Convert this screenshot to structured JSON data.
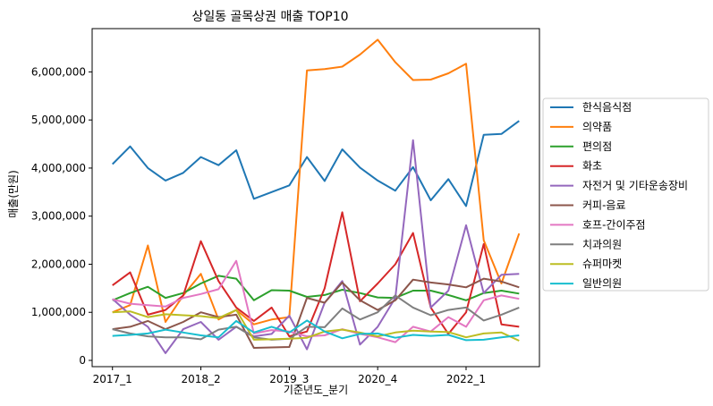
{
  "chart_data": {
    "type": "line",
    "title": "상일동 골목상권 매출 TOP10",
    "xlabel": "기준년도_분기",
    "ylabel": "매출(만원)",
    "xtick_labels": [
      "2017_1",
      "2018_2",
      "2019_3",
      "2020_4",
      "2022_1"
    ],
    "xtick_index": [
      0,
      5,
      10,
      15,
      20
    ],
    "yticks": [
      0,
      1000000,
      2000000,
      3000000,
      4000000,
      5000000,
      6000000
    ],
    "ytick_labels": [
      "0",
      "1,000,000",
      "2,000,000",
      "3,000,000",
      "4,000,000",
      "5,000,000",
      "6,000,000"
    ],
    "ylim": [
      -130000,
      6900000
    ],
    "x_range": [
      -1.15,
      24.15
    ],
    "grid": false,
    "legend_position": "right",
    "categories": [
      "2017_1",
      "2017_2",
      "2017_3",
      "2017_4",
      "2018_1",
      "2018_2",
      "2018_3",
      "2018_4",
      "2019_1",
      "2019_2",
      "2019_3",
      "2019_4",
      "2020_1",
      "2020_2",
      "2020_3",
      "2020_4",
      "2021_1",
      "2021_2",
      "2021_3",
      "2021_4",
      "2022_1",
      "2022_2",
      "2022_3",
      "2022_4"
    ],
    "series": [
      {
        "name": "한식음식점",
        "color": "#1f77b4",
        "values": [
          4080000,
          4450000,
          4000000,
          3740000,
          3900000,
          4230000,
          4060000,
          4370000,
          3360000,
          3500000,
          3640000,
          4230000,
          3730000,
          4390000,
          4010000,
          3740000,
          3530000,
          4020000,
          3330000,
          3770000,
          3210000,
          4690000,
          4710000,
          4980000
        ]
      },
      {
        "name": "의약품",
        "color": "#ff7f0e",
        "values": [
          1000000,
          1150000,
          2390000,
          800000,
          1350000,
          1800000,
          850000,
          1050000,
          750000,
          850000,
          900000,
          6030000,
          6060000,
          6110000,
          6360000,
          6670000,
          6200000,
          5830000,
          5840000,
          5970000,
          6170000,
          2500000,
          1600000,
          2640000
        ]
      },
      {
        "name": "편의점",
        "color": "#2ca02c",
        "values": [
          1250000,
          1400000,
          1530000,
          1300000,
          1400000,
          1600000,
          1760000,
          1700000,
          1250000,
          1460000,
          1450000,
          1320000,
          1360000,
          1470000,
          1400000,
          1310000,
          1300000,
          1450000,
          1450000,
          1360000,
          1250000,
          1400000,
          1450000,
          1390000
        ]
      },
      {
        "name": "화초",
        "color": "#d62728",
        "values": [
          1560000,
          1830000,
          950000,
          1050000,
          1350000,
          2480000,
          1650000,
          1100000,
          820000,
          1100000,
          500000,
          600000,
          1500000,
          3080000,
          1230000,
          1600000,
          2000000,
          2650000,
          1100000,
          550000,
          1000000,
          2420000,
          750000,
          700000
        ]
      },
      {
        "name": "자전거 및 기타운송장비",
        "color": "#9467bd",
        "values": [
          1280000,
          950000,
          700000,
          150000,
          650000,
          800000,
          430000,
          700000,
          500000,
          550000,
          930000,
          230000,
          1200000,
          1650000,
          330000,
          700000,
          1300000,
          4580000,
          1100000,
          1450000,
          2810000,
          1400000,
          1780000,
          1800000
        ]
      },
      {
        "name": "커피-음료",
        "color": "#8c564b",
        "values": [
          650000,
          700000,
          820000,
          650000,
          800000,
          1000000,
          900000,
          950000,
          260000,
          270000,
          280000,
          1300000,
          1200000,
          1620000,
          1250000,
          1050000,
          1250000,
          1680000,
          1620000,
          1580000,
          1520000,
          1700000,
          1640000,
          1520000
        ]
      },
      {
        "name": "호프-간이주점",
        "color": "#e377c2",
        "values": [
          1270000,
          1180000,
          1150000,
          1120000,
          1300000,
          1380000,
          1480000,
          2070000,
          560000,
          630000,
          600000,
          500000,
          520000,
          650000,
          550000,
          480000,
          380000,
          700000,
          600000,
          900000,
          700000,
          1250000,
          1350000,
          1280000
        ]
      },
      {
        "name": "치과의원",
        "color": "#7f7f7f",
        "values": [
          650000,
          560000,
          500000,
          480000,
          480000,
          440000,
          640000,
          700000,
          480000,
          430000,
          450000,
          700000,
          690000,
          1080000,
          850000,
          1000000,
          1350000,
          1100000,
          940000,
          1050000,
          1100000,
          830000,
          950000,
          1100000
        ]
      },
      {
        "name": "슈퍼마켓",
        "color": "#bcbd22",
        "values": [
          1000000,
          1020000,
          900000,
          960000,
          940000,
          920000,
          880000,
          1050000,
          430000,
          440000,
          450000,
          470000,
          600000,
          640000,
          580000,
          500000,
          580000,
          620000,
          600000,
          590000,
          480000,
          560000,
          580000,
          410000
        ]
      },
      {
        "name": "일반의원",
        "color": "#17becf",
        "values": [
          510000,
          530000,
          560000,
          640000,
          580000,
          520000,
          480000,
          820000,
          580000,
          700000,
          580000,
          830000,
          600000,
          460000,
          550000,
          560000,
          470000,
          530000,
          510000,
          530000,
          420000,
          430000,
          480000,
          520000
        ]
      }
    ]
  }
}
